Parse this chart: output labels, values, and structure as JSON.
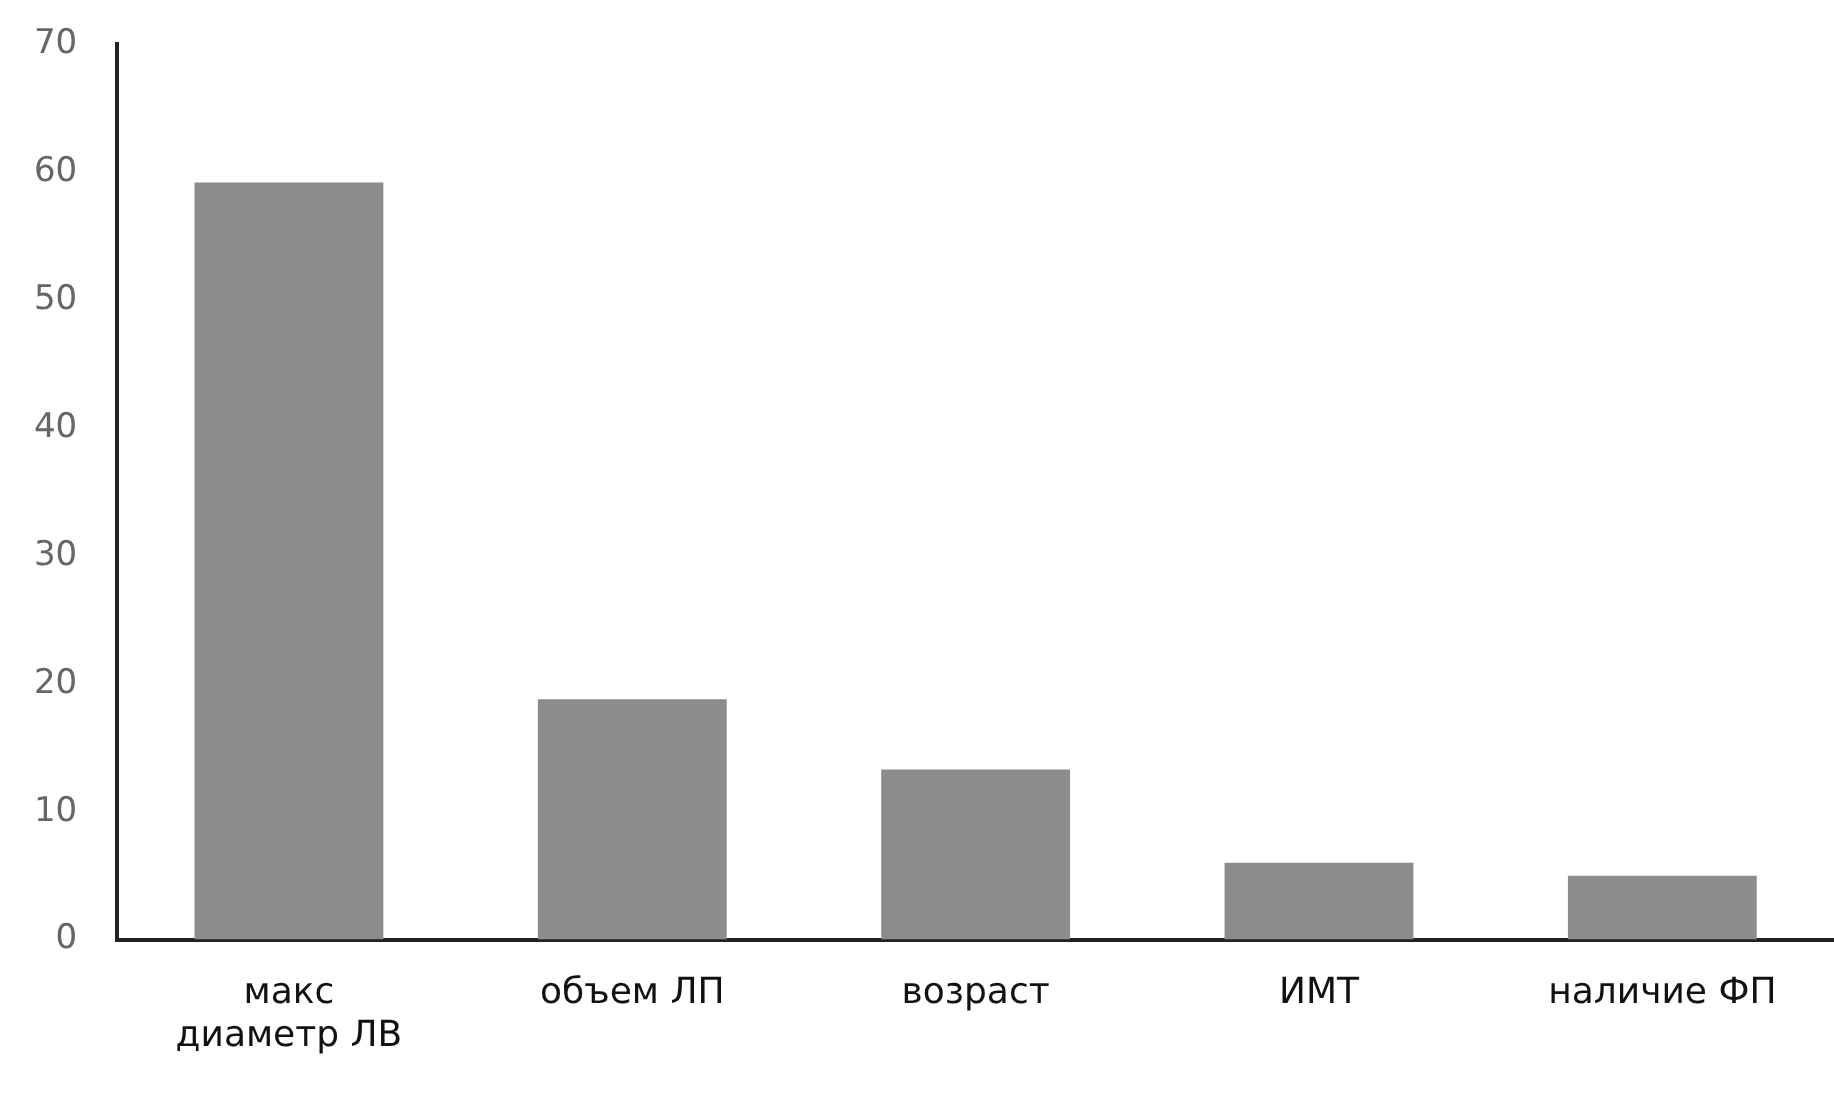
{
  "chart_data": {
    "type": "bar",
    "categories": [
      "макс диаметр ЛВ",
      "объем ЛП",
      "возраст",
      "ИМТ",
      "наличие ФП"
    ],
    "values": [
      59.2,
      18.8,
      13.3,
      6,
      5
    ],
    "color": "#8c8c8c",
    "ylim": [
      0,
      70
    ],
    "yticks": [
      0,
      10,
      20,
      30,
      40,
      50,
      60,
      70
    ],
    "grid": false,
    "legend": false
  }
}
